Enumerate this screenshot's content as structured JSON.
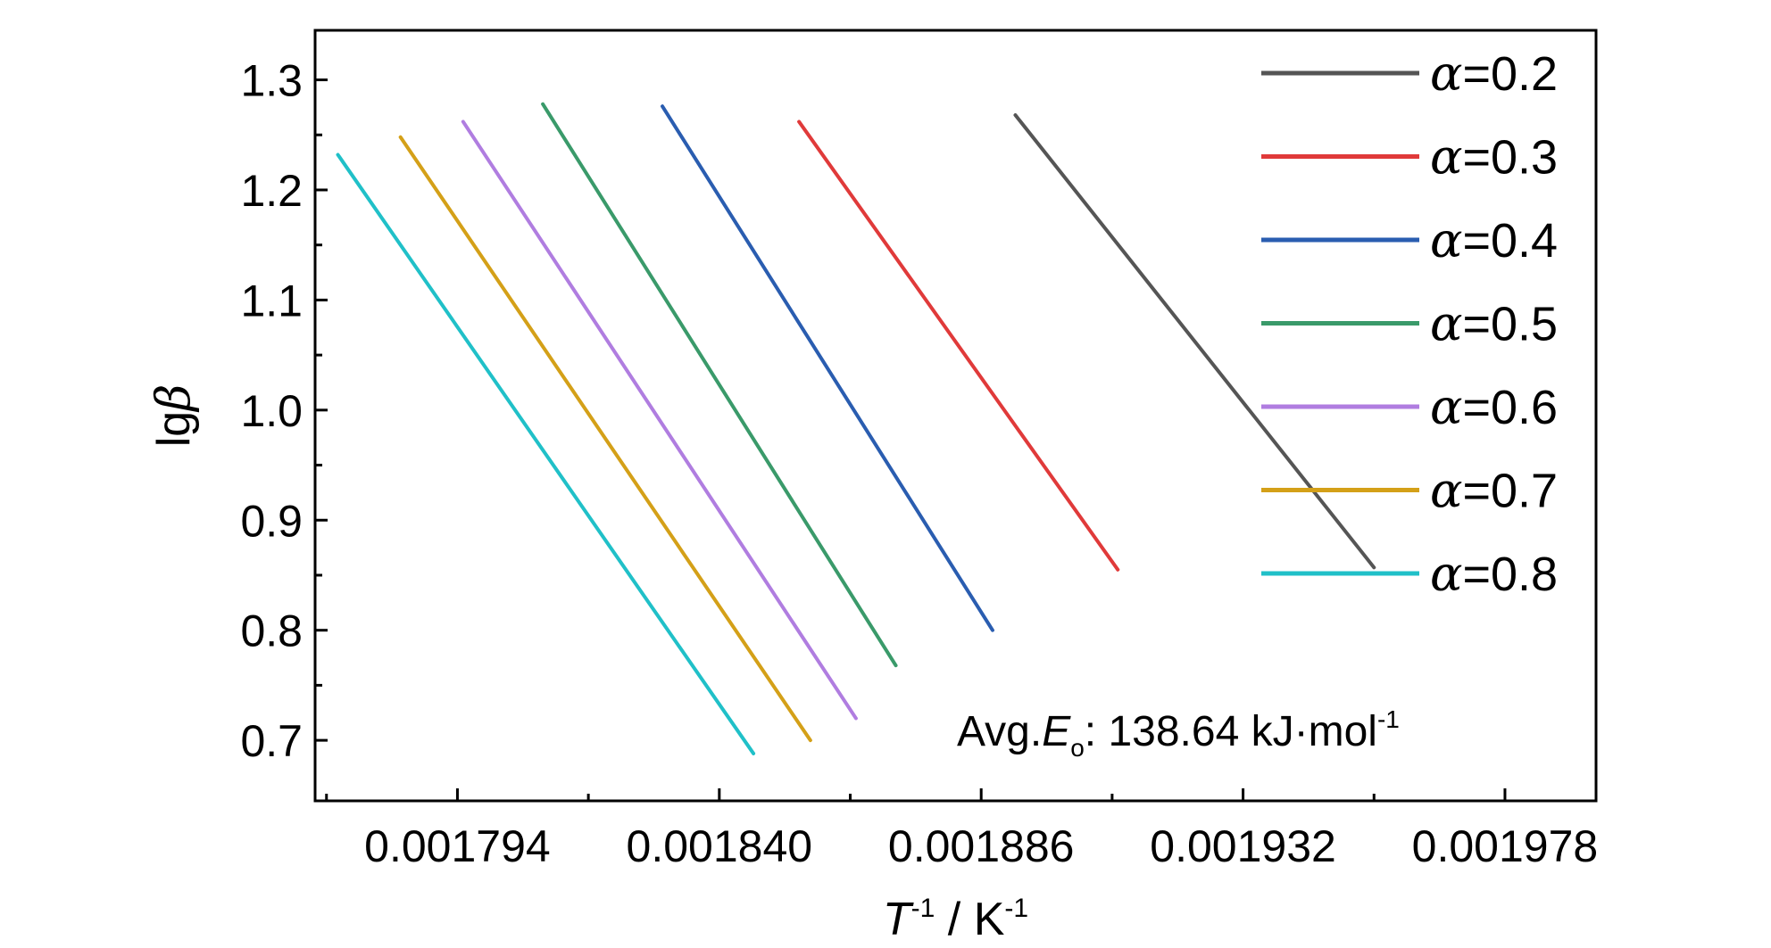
{
  "chart_data": {
    "type": "line",
    "xlabel": {
      "var": "T",
      "sup": "-1",
      "sep": " / K",
      "unit_sup": "-1"
    },
    "ylabel": {
      "prefix": "lg",
      "symbol": "β"
    },
    "xlim": [
      0.001769,
      0.001994
    ],
    "ylim": [
      0.645,
      1.345
    ],
    "x_ticks": [
      "0.001794",
      "0.001840",
      "0.001886",
      "0.001932",
      "0.001978"
    ],
    "x_tick_values": [
      0.001794,
      0.00184,
      0.001886,
      0.001932,
      0.001978
    ],
    "y_ticks": [
      "0.7",
      "0.8",
      "0.9",
      "1.0",
      "1.1",
      "1.2",
      "1.3"
    ],
    "y_tick_values": [
      0.7,
      0.8,
      0.9,
      1.0,
      1.1,
      1.2,
      1.3
    ],
    "legend_position": "top-right",
    "series": [
      {
        "name": "=0.2",
        "symbol": "α",
        "color": "#555555",
        "x": [
          0.001892,
          0.001955
        ],
        "y": [
          1.268,
          0.857
        ]
      },
      {
        "name": "=0.3",
        "symbol": "α",
        "color": "#e03a3a",
        "x": [
          0.001854,
          0.00191
        ],
        "y": [
          1.262,
          0.855
        ]
      },
      {
        "name": "=0.4",
        "symbol": "α",
        "color": "#2a5db0",
        "x": [
          0.00183,
          0.001888
        ],
        "y": [
          1.276,
          0.8
        ]
      },
      {
        "name": "=0.5",
        "symbol": "α",
        "color": "#3a9a6a",
        "x": [
          0.001809,
          0.001871
        ],
        "y": [
          1.278,
          0.768
        ]
      },
      {
        "name": "=0.6",
        "symbol": "α",
        "color": "#b07de0",
        "x": [
          0.001795,
          0.001864
        ],
        "y": [
          1.262,
          0.72
        ]
      },
      {
        "name": "=0.7",
        "symbol": "α",
        "color": "#d4a018",
        "x": [
          0.001784,
          0.001856
        ],
        "y": [
          1.248,
          0.7
        ]
      },
      {
        "name": "=0.8",
        "symbol": "α",
        "color": "#20c0c8",
        "x": [
          0.001773,
          0.001846
        ],
        "y": [
          1.232,
          0.688
        ]
      }
    ],
    "annotation": {
      "prefix": "Avg.",
      "var": "E",
      "sub": "o",
      "value": ": 138.64 kJ·mol",
      "sup": "-1"
    }
  }
}
